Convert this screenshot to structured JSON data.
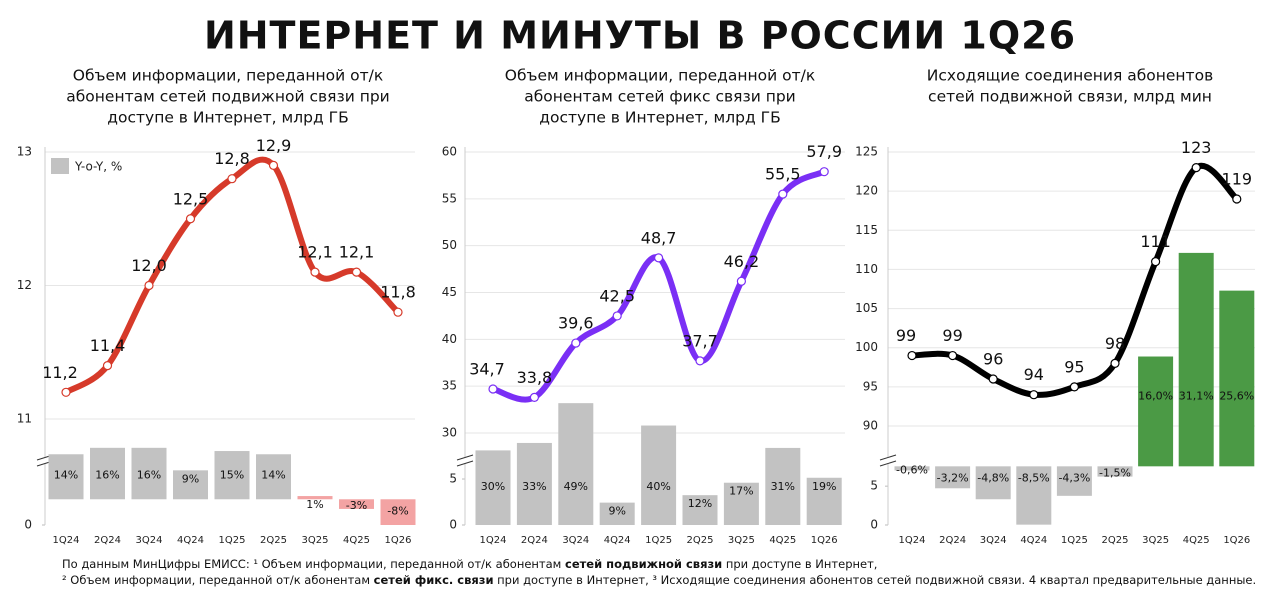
{
  "title": "ИНТЕРНЕТ И МИНУТЫ В РОССИИ 1Q26",
  "footnote": [
    [
      "По данным МинЦифры ЕМИСС: ¹ Объем информации, переданной от/к абонентам ",
      "сетей подвижной связи",
      " при доступе в Интернет,"
    ],
    [
      "² Объем информации, переданной от/к абонентам ",
      "сетей фикс. связи",
      " при доступе в Интернет, ³ Исходящие соединения абонентов сетей подвижной связи. 4 квартал предварительные данные."
    ]
  ],
  "chart_data": [
    {
      "type": "combo",
      "title": [
        "Объем информации, переданной от/к",
        "абонентам сетей подвижной связи при",
        "доступе в Интернет, млрд ГБ"
      ],
      "categories": [
        "1Q24",
        "2Q24",
        "3Q24",
        "4Q24",
        "1Q25",
        "2Q25",
        "3Q25",
        "4Q25",
        "1Q26"
      ],
      "series": [
        {
          "name": "Y-o-Y, %",
          "kind": "bar",
          "color": "#c2c2c2",
          "colors": [
            "#c2c2c2",
            "#c2c2c2",
            "#c2c2c2",
            "#c2c2c2",
            "#c2c2c2",
            "#c2c2c2",
            "#f3a3a3",
            "#f3a3a3",
            "#f3a3a3"
          ],
          "values": [
            14,
            16,
            16,
            9,
            15,
            14,
            1,
            -3,
            -8
          ],
          "value_labels": [
            "14%",
            "16%",
            "16%",
            "9%",
            "15%",
            "14%",
            "1%",
            "-3%",
            "-8%"
          ]
        },
        {
          "kind": "line",
          "color": "#d63a2a",
          "values": [
            11.2,
            11.4,
            12.0,
            12.5,
            12.8,
            12.9,
            12.1,
            12.1,
            11.8
          ],
          "value_labels": [
            "11,2",
            "11,4",
            "12,0",
            "12,5",
            "12,8",
            "12,9",
            "12,1",
            "12,1",
            "11,8"
          ]
        }
      ],
      "ylim": [
        11,
        13
      ],
      "yticks": [
        11,
        12,
        13
      ],
      "grid": true,
      "y2lim": [
        0,
        10
      ],
      "y2ticks": [
        0
      ],
      "bar_ylim": [
        -8,
        108
      ]
    },
    {
      "type": "combo",
      "title": [
        "Объем информации, переданной от/к",
        "абонентам сетей фикс связи при",
        "доступе в Интернет, млрд ГБ"
      ],
      "categories": [
        "1Q24",
        "2Q24",
        "3Q24",
        "4Q24",
        "1Q25",
        "2Q25",
        "3Q25",
        "4Q25",
        "1Q26"
      ],
      "series": [
        {
          "kind": "bar",
          "color": "#c2c2c2",
          "colors": [
            "#c2c2c2",
            "#c2c2c2",
            "#c2c2c2",
            "#c2c2c2",
            "#c2c2c2",
            "#c2c2c2",
            "#c2c2c2",
            "#c2c2c2",
            "#c2c2c2"
          ],
          "values": [
            30,
            33,
            49,
            9,
            40,
            12,
            17,
            31,
            19
          ],
          "value_labels": [
            "30%",
            "33%",
            "49%",
            "9%",
            "40%",
            "12%",
            "17%",
            "31%",
            "19%"
          ]
        },
        {
          "kind": "line",
          "color": "#7a2ff5",
          "values": [
            34.7,
            33.8,
            39.6,
            42.5,
            48.7,
            37.7,
            46.2,
            55.5,
            57.9
          ],
          "value_labels": [
            "34,7",
            "33,8",
            "39,6",
            "42,5",
            "48,7",
            "37,7",
            "46,2",
            "55,5",
            "57,9"
          ]
        }
      ],
      "ylim": [
        30,
        60
      ],
      "yticks": [
        30,
        35,
        40,
        45,
        50,
        55,
        60
      ],
      "grid": true,
      "y2lim": [
        0,
        8.7
      ],
      "y2ticks": [
        0,
        5
      ],
      "bar_ylim": [
        0,
        150
      ]
    },
    {
      "type": "combo",
      "title": [
        "Исходящие соединения абонентов",
        "сетей подвижной связи, млрд мин"
      ],
      "categories": [
        "1Q24",
        "2Q24",
        "3Q24",
        "4Q24",
        "1Q25",
        "2Q25",
        "3Q25",
        "4Q25",
        "1Q26"
      ],
      "series": [
        {
          "kind": "bar",
          "color": "#c2c2c2",
          "colors": [
            "#c2c2c2",
            "#c2c2c2",
            "#c2c2c2",
            "#c2c2c2",
            "#c2c2c2",
            "#c2c2c2",
            "#4b9a45",
            "#4b9a45",
            "#4b9a45"
          ],
          "values": [
            -0.6,
            -3.2,
            -4.8,
            -8.5,
            -4.3,
            -1.5,
            16.0,
            31.1,
            25.6
          ],
          "value_labels": [
            "-0,6%",
            "-3,2%",
            "-4,8%",
            "-8,5%",
            "-4,3%",
            "-1,5%",
            "16,0%",
            "31,1%",
            "25,6%"
          ]
        },
        {
          "kind": "line",
          "color": "#000000",
          "values": [
            99,
            99,
            96,
            94,
            95,
            98,
            111,
            123,
            119
          ]
        }
      ],
      "ylim": [
        90,
        125
      ],
      "yticks": [
        90,
        95,
        100,
        105,
        110,
        115,
        120,
        125
      ],
      "grid": true,
      "y2lim": [
        0,
        10.3
      ],
      "y2ticks": [
        0,
        5
      ],
      "bar_ylim": [
        -8.55,
        45.8
      ]
    }
  ]
}
